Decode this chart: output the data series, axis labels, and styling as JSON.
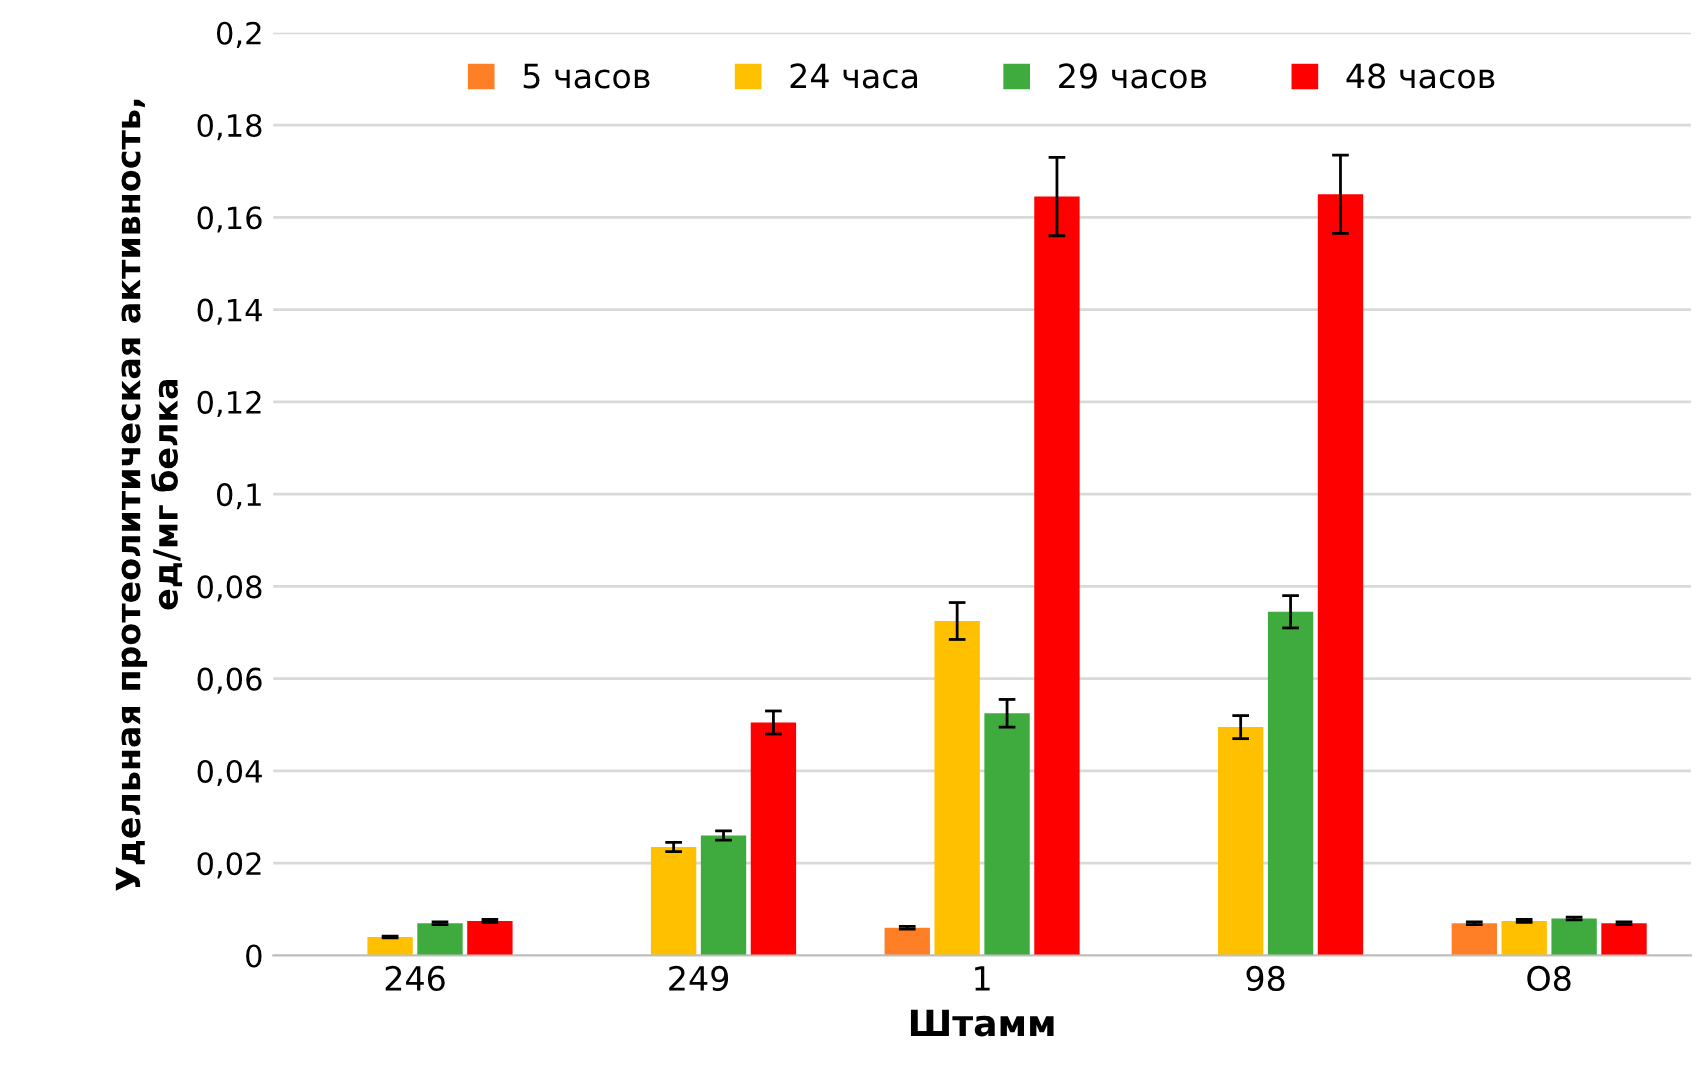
{
  "chart_data": {
    "type": "bar",
    "xlabel": "Штамм",
    "ylabel": "Удельная протеолитическая активность,\nед/мг белка",
    "categories": [
      "246",
      "249",
      "1",
      "98",
      "O8"
    ],
    "ylim": [
      0,
      0.2
    ],
    "yticks": [
      0,
      {
        "value": 0.02,
        "label": "0,02"
      },
      {
        "value": 0.04,
        "label": "0,04"
      },
      {
        "value": 0.06,
        "label": "0,06"
      },
      {
        "value": 0.08,
        "label": "0,08"
      },
      {
        "value": 0.1,
        "label": "0,1"
      },
      {
        "value": 0.12,
        "label": "0,12"
      },
      {
        "value": 0.14,
        "label": "0,14"
      },
      {
        "value": 0.16,
        "label": "0,16"
      },
      {
        "value": 0.18,
        "label": "0,18"
      },
      {
        "value": 0.2,
        "label": "0,2"
      }
    ],
    "grid": "y",
    "legend": "top",
    "series": [
      {
        "name": "5 часов",
        "color": "#ff7f27",
        "values": [
          null,
          null,
          0.006,
          null,
          0.007
        ],
        "errors": [
          null,
          null,
          0.0003,
          null,
          0.0003
        ]
      },
      {
        "name": "24 часа",
        "color": "#ffc000",
        "values": [
          0.004,
          0.0235,
          0.0725,
          0.0495,
          0.0075
        ],
        "errors": [
          0.0002,
          0.001,
          0.004,
          0.0025,
          0.0003
        ]
      },
      {
        "name": "29 часов",
        "color": "#3fab3f",
        "values": [
          0.007,
          0.026,
          0.0525,
          0.0745,
          0.008
        ],
        "errors": [
          0.0003,
          0.001,
          0.003,
          0.0035,
          0.0003
        ]
      },
      {
        "name": "48 часов",
        "color": "#ff0000",
        "values": [
          0.0075,
          0.0505,
          0.1645,
          0.165,
          0.007
        ],
        "errors": [
          0.0003,
          0.0025,
          0.0085,
          0.0085,
          0.0003
        ]
      }
    ]
  }
}
